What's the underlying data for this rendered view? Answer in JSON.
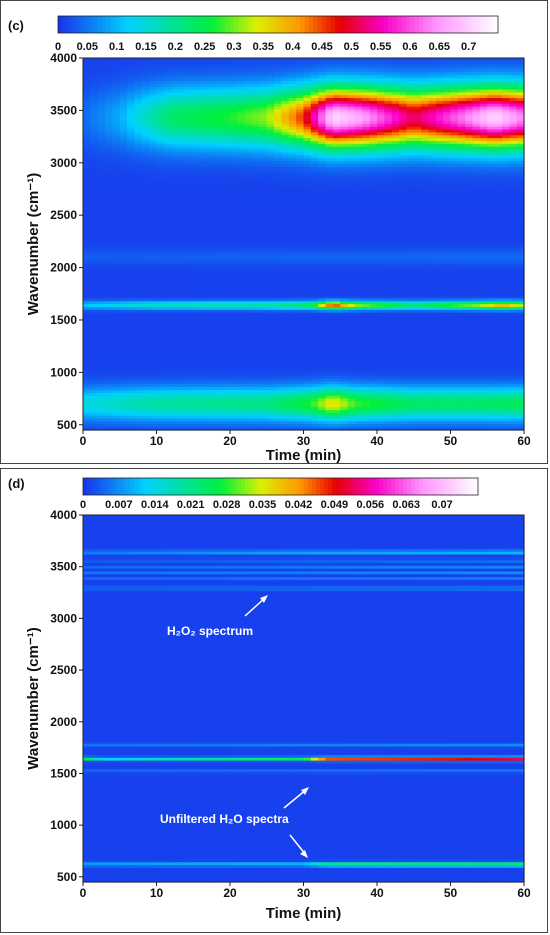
{
  "chart_data": [
    {
      "type": "heatmap",
      "panel_label": "(c)",
      "xlabel": "Time (min)",
      "ylabel": "Wavenumber (cm⁻¹)",
      "xlim": [
        0,
        60
      ],
      "ylim": [
        450,
        4000
      ],
      "x_ticks": [
        "0",
        "10",
        "20",
        "30",
        "40",
        "50",
        "60"
      ],
      "y_ticks": [
        "500",
        "1000",
        "1500",
        "2000",
        "2500",
        "3000",
        "3500",
        "4000"
      ],
      "colorbar": {
        "range": [
          0,
          0.75
        ],
        "tick_labels": [
          "0",
          "0.05",
          "0.1",
          "0.15",
          "0.2",
          "0.25",
          "0.3",
          "0.35",
          "0.4",
          "0.45",
          "0.5",
          "0.55",
          "0.6",
          "0.65",
          "0.7"
        ],
        "tick_values": [
          0,
          0.05,
          0.1,
          0.15,
          0.2,
          0.25,
          0.3,
          0.35,
          0.4,
          0.45,
          0.5,
          0.55,
          0.6,
          0.65,
          0.7
        ]
      },
      "bands": [
        {
          "center": 3430,
          "width": 200,
          "amplitudes": [
            [
              0,
              0.03
            ],
            [
              5,
              0.08
            ],
            [
              8,
              0.14
            ],
            [
              12,
              0.22
            ],
            [
              20,
              0.26
            ],
            [
              25,
              0.3
            ],
            [
              30,
              0.45
            ],
            [
              34,
              0.7
            ],
            [
              38,
              0.65
            ],
            [
              45,
              0.5
            ],
            [
              52,
              0.62
            ],
            [
              56,
              0.7
            ],
            [
              60,
              0.62
            ]
          ]
        },
        {
          "center": 1640,
          "width": 28,
          "amplitudes": [
            [
              0,
              0.1
            ],
            [
              10,
              0.15
            ],
            [
              25,
              0.17
            ],
            [
              31,
              0.22
            ],
            [
              34,
              0.45
            ],
            [
              37,
              0.3
            ],
            [
              45,
              0.2
            ],
            [
              54,
              0.3
            ],
            [
              57,
              0.38
            ],
            [
              60,
              0.3
            ]
          ]
        },
        {
          "center": 700,
          "width": 110,
          "amplitudes": [
            [
              0,
              0.13
            ],
            [
              10,
              0.18
            ],
            [
              25,
              0.2
            ],
            [
              31,
              0.26
            ],
            [
              34,
              0.35
            ],
            [
              37,
              0.27
            ],
            [
              45,
              0.22
            ],
            [
              54,
              0.22
            ],
            [
              60,
              0.23
            ]
          ]
        },
        {
          "center": 2100,
          "width": 55,
          "amplitudes": [
            [
              0,
              0.02
            ],
            [
              60,
              0.03
            ]
          ]
        }
      ]
    },
    {
      "type": "heatmap",
      "panel_label": "(d)",
      "xlabel": "Time (min)",
      "ylabel": "Wavenumber (cm⁻¹)",
      "xlim": [
        0,
        60
      ],
      "ylim": [
        450,
        4000
      ],
      "x_ticks": [
        "0",
        "10",
        "20",
        "30",
        "40",
        "50",
        "60"
      ],
      "y_ticks": [
        "500",
        "1000",
        "1500",
        "2000",
        "2500",
        "3000",
        "3500",
        "4000"
      ],
      "colorbar": {
        "range": [
          0,
          0.077
        ],
        "tick_labels": [
          "0",
          "0.007",
          "0.014",
          "0.021",
          "0.028",
          "0.035",
          "0.042",
          "0.049",
          "0.056",
          "0.063",
          "0.07"
        ],
        "tick_values": [
          0,
          0.007,
          0.014,
          0.021,
          0.028,
          0.035,
          0.042,
          0.049,
          0.056,
          0.063,
          0.07
        ]
      },
      "bands": [
        {
          "center": 3640,
          "width": 12,
          "amplitudes": [
            [
              0,
              0.006
            ],
            [
              30,
              0.01
            ],
            [
              60,
              0.012
            ]
          ]
        },
        {
          "center": 3560,
          "width": 8,
          "amplitudes": [
            [
              0,
              0.004
            ],
            [
              60,
              0.008
            ]
          ]
        },
        {
          "center": 3500,
          "width": 8,
          "amplitudes": [
            [
              0,
              0.004
            ],
            [
              60,
              0.007
            ]
          ]
        },
        {
          "center": 3440,
          "width": 8,
          "amplitudes": [
            [
              0,
              0.004
            ],
            [
              60,
              0.006
            ]
          ]
        },
        {
          "center": 3380,
          "width": 8,
          "amplitudes": [
            [
              0,
              0.004
            ],
            [
              60,
              0.006
            ]
          ]
        },
        {
          "center": 3290,
          "width": 10,
          "amplitudes": [
            [
              0,
              0.005
            ],
            [
              60,
              0.008
            ]
          ]
        },
        {
          "center": 1775,
          "width": 12,
          "amplitudes": [
            [
              0,
              0.004
            ],
            [
              60,
              0.006
            ]
          ]
        },
        {
          "center": 1640,
          "width": 12,
          "amplitudes": [
            [
              0,
              0.028
            ],
            [
              3,
              0.012
            ],
            [
              15,
              0.018
            ],
            [
              30,
              0.024
            ],
            [
              33,
              0.045
            ],
            [
              50,
              0.048
            ],
            [
              60,
              0.052
            ]
          ]
        },
        {
          "center": 1520,
          "width": 10,
          "amplitudes": [
            [
              0,
              0.004
            ],
            [
              60,
              0.006
            ]
          ]
        },
        {
          "center": 620,
          "width": 14,
          "amplitudes": [
            [
              0,
              0.008
            ],
            [
              30,
              0.01
            ],
            [
              33,
              0.022
            ],
            [
              60,
              0.024
            ]
          ]
        }
      ],
      "annotations": [
        {
          "label": "H₂O₂ spectrum"
        },
        {
          "label": "Unfiltered H₂O spectra"
        }
      ]
    }
  ]
}
